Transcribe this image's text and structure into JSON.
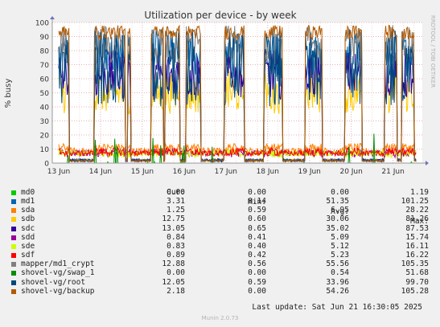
{
  "chart_data": {
    "type": "line",
    "title": "Utilization per device - by week",
    "ylabel": "% busy",
    "ylim": [
      0,
      100
    ],
    "yticks": [
      0,
      10,
      20,
      30,
      40,
      50,
      60,
      70,
      80,
      90,
      100
    ],
    "xticks": [
      "13 Jun",
      "14 Jun",
      "15 Jun",
      "16 Jun",
      "17 Jun",
      "18 Jun",
      "19 Jun",
      "20 Jun",
      "21 Jun"
    ],
    "xlim_days": [
      0,
      8.7
    ],
    "grid": true,
    "side_label": "RRDTOOL / TOBI OETIKER",
    "columns": [
      "Cur:",
      "Min:",
      "Avg:",
      "Max:"
    ],
    "series": [
      {
        "name": "md0",
        "color": "#00cc00",
        "cur": "0.00",
        "min": "0.00",
        "avg": "0.00",
        "max": "1.19"
      },
      {
        "name": "md1",
        "color": "#0066b3",
        "cur": "3.31",
        "min": "0.14",
        "avg": "51.35",
        "max": "101.25"
      },
      {
        "name": "sda",
        "color": "#ff8000",
        "cur": "1.25",
        "min": "0.59",
        "avg": "6.95",
        "max": "28.22"
      },
      {
        "name": "sdb",
        "color": "#ffcc00",
        "cur": "12.75",
        "min": "0.60",
        "avg": "30.06",
        "max": "81.26"
      },
      {
        "name": "sdc",
        "color": "#330099",
        "cur": "13.05",
        "min": "0.65",
        "avg": "35.02",
        "max": "87.53"
      },
      {
        "name": "sdd",
        "color": "#990099",
        "cur": "0.84",
        "min": "0.41",
        "avg": "5.09",
        "max": "15.74"
      },
      {
        "name": "sde",
        "color": "#ccff00",
        "cur": "0.83",
        "min": "0.40",
        "avg": "5.12",
        "max": "16.11"
      },
      {
        "name": "sdf",
        "color": "#ff0000",
        "cur": "0.89",
        "min": "0.42",
        "avg": "5.23",
        "max": "16.22"
      },
      {
        "name": "mapper/md1_crypt",
        "color": "#808080",
        "cur": "12.88",
        "min": "0.56",
        "avg": "55.56",
        "max": "105.35"
      },
      {
        "name": "shovel-vg/swap_1",
        "color": "#008f00",
        "cur": "0.00",
        "min": "0.00",
        "avg": "0.54",
        "max": "51.68"
      },
      {
        "name": "shovel-vg/root",
        "color": "#00487d",
        "cur": "12.05",
        "min": "0.59",
        "avg": "33.96",
        "max": "99.70"
      },
      {
        "name": "shovel-vg/backup",
        "color": "#b35a00",
        "cur": "2.18",
        "min": "0.00",
        "avg": "54.26",
        "max": "105.28"
      }
    ],
    "last_update": "Last update: Sat Jun 21 16:30:05 2025",
    "footer": "Munin 2.0.73"
  }
}
